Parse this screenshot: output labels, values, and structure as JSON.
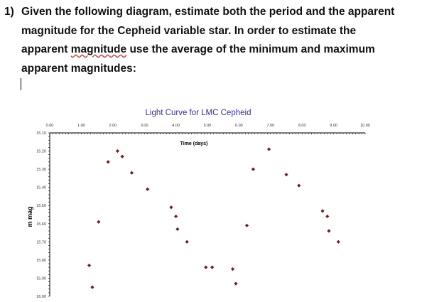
{
  "question": {
    "number": "1)",
    "line1": "Given the following diagram, estimate both the period and the apparent",
    "line2": "magnitude for the Cepheid variable star. In order to estimate the",
    "line3_a": "apparent ",
    "line3_b": "magnitude",
    "line3_c": " use the average of the minimum and maximum",
    "line4": "apparent magnitudes:"
  },
  "chart_data": {
    "type": "scatter",
    "title": "Light Curve for LMC Cepheid",
    "xlabel": "Time (days)",
    "ylabel": "m mag",
    "xlim": [
      0,
      10
    ],
    "ylim": [
      15.1,
      16.0
    ],
    "y_inverted": true,
    "x_axis_position": "top",
    "x_ticks": [
      "0.00",
      "1.00",
      "2.00",
      "3.00",
      "4.00",
      "5.00",
      "6.00",
      "7.00",
      "8.00",
      "9.00",
      "10.00"
    ],
    "y_ticks": [
      "15.10",
      "15.20",
      "15.30",
      "15.40",
      "15.50",
      "15.60",
      "15.70",
      "15.80",
      "15.90",
      "16.00"
    ],
    "grid": false,
    "marker_color": "#7a1a1a",
    "points": [
      {
        "x": 1.25,
        "y": 15.83
      },
      {
        "x": 1.35,
        "y": 15.95
      },
      {
        "x": 1.55,
        "y": 15.59
      },
      {
        "x": 1.85,
        "y": 15.26
      },
      {
        "x": 2.15,
        "y": 15.2
      },
      {
        "x": 2.3,
        "y": 15.23
      },
      {
        "x": 2.6,
        "y": 15.32
      },
      {
        "x": 3.1,
        "y": 15.41
      },
      {
        "x": 3.85,
        "y": 15.51
      },
      {
        "x": 4.0,
        "y": 15.56
      },
      {
        "x": 4.05,
        "y": 15.63
      },
      {
        "x": 4.35,
        "y": 15.7
      },
      {
        "x": 4.95,
        "y": 15.84
      },
      {
        "x": 5.15,
        "y": 15.84
      },
      {
        "x": 5.8,
        "y": 15.85
      },
      {
        "x": 5.9,
        "y": 15.93
      },
      {
        "x": 6.25,
        "y": 15.61
      },
      {
        "x": 6.45,
        "y": 15.3
      },
      {
        "x": 6.95,
        "y": 15.19
      },
      {
        "x": 7.5,
        "y": 15.33
      },
      {
        "x": 7.9,
        "y": 15.39
      },
      {
        "x": 8.65,
        "y": 15.53
      },
      {
        "x": 8.8,
        "y": 15.56
      },
      {
        "x": 8.85,
        "y": 15.64
      },
      {
        "x": 9.15,
        "y": 15.7
      }
    ]
  }
}
